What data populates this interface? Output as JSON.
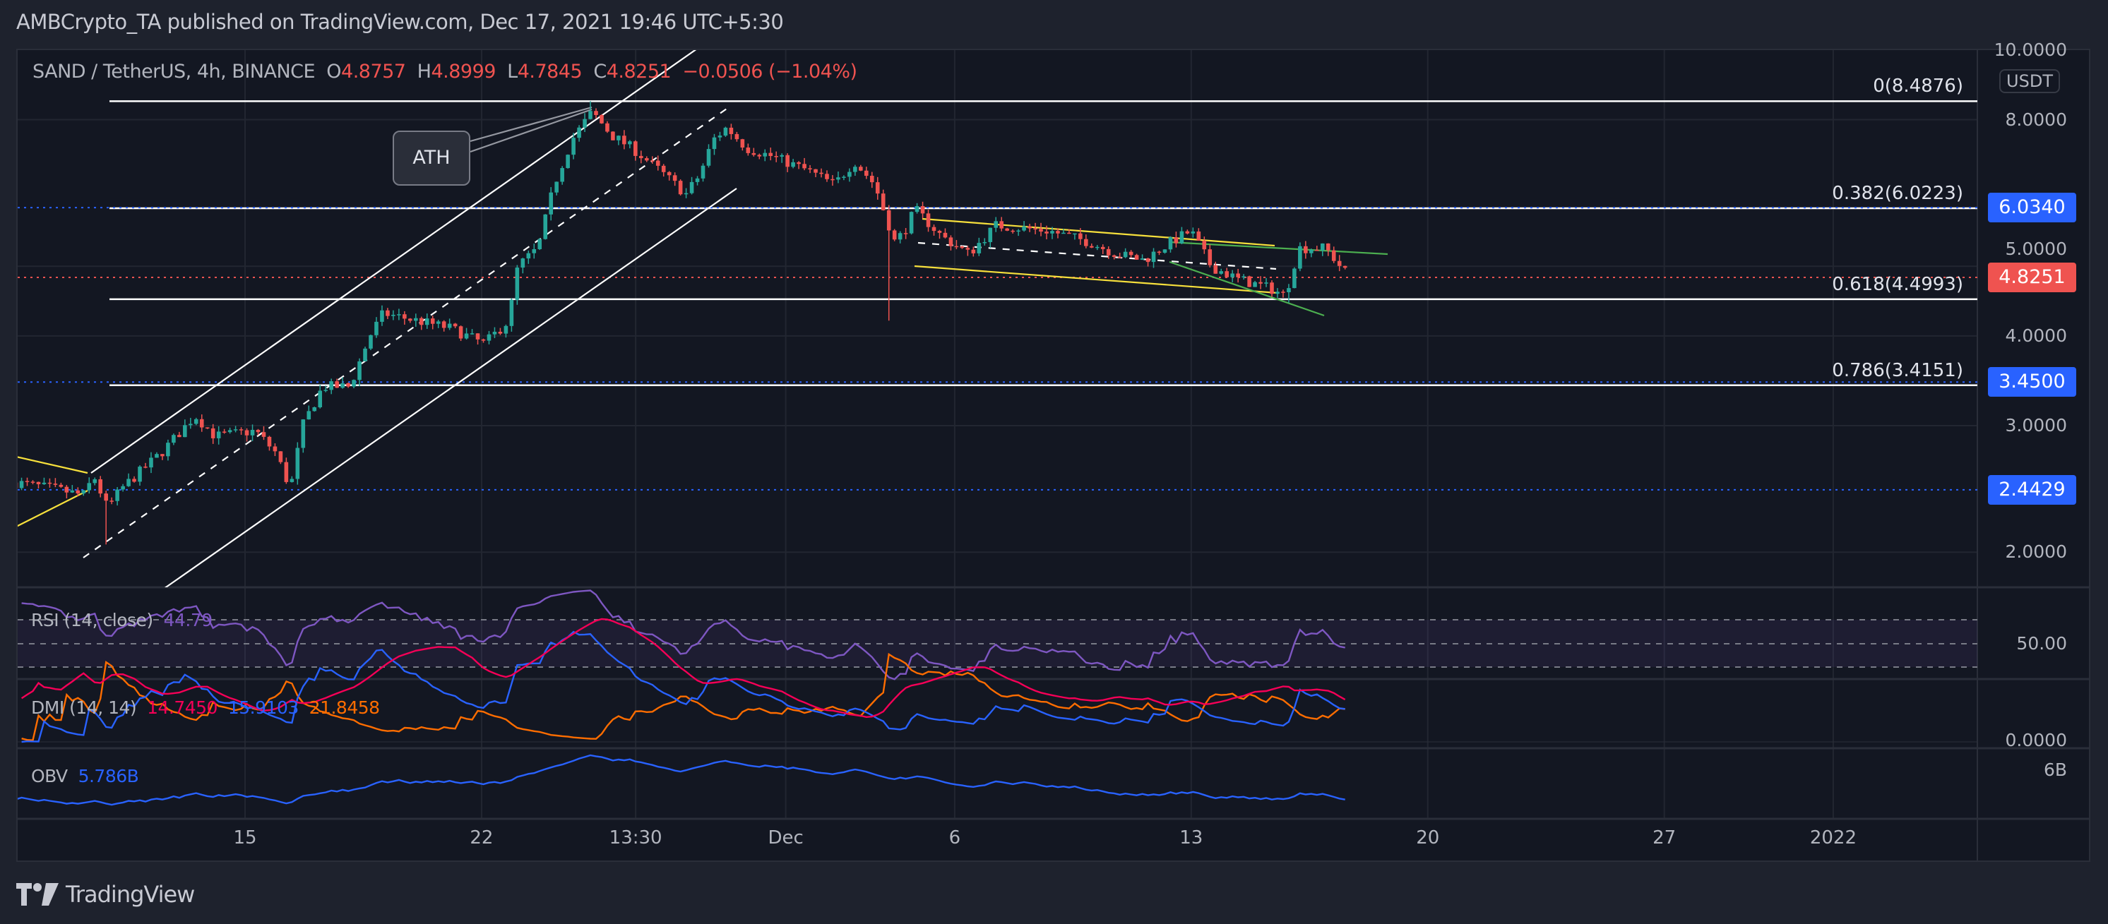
{
  "header": {
    "published": "AMBCrypto_TA published on TradingView.com, Dec 17, 2021 19:46 UTC+5:30",
    "symbol": "SAND / TetherUS, 4h, BINANCE",
    "o_label": "O",
    "o": "4.8757",
    "h_label": "H",
    "h": "4.8999",
    "l_label": "L",
    "l": "4.7845",
    "c_label": "C",
    "c": "4.8251",
    "change": "−0.0506 (−1.04%)"
  },
  "price_axis": {
    "currency": "USDT",
    "ticks": [
      "10.0000",
      "8.0000",
      "5.0000",
      "4.0000",
      "3.0000",
      "2.0000"
    ],
    "tags": [
      {
        "label": "6.0340",
        "value": 6.034,
        "color": "#2962ff"
      },
      {
        "label": "4.8251",
        "value": 4.8251,
        "color": "#ef5350"
      },
      {
        "label": "3.4500",
        "value": 3.45,
        "color": "#2962ff"
      },
      {
        "label": "2.4429",
        "value": 2.4429,
        "color": "#2962ff"
      }
    ]
  },
  "fib_levels": [
    {
      "label": "0(8.4876)",
      "value": 8.4876
    },
    {
      "label": "0.382(6.0223)",
      "value": 6.0223
    },
    {
      "label": "0.618(4.4993)",
      "value": 4.4993
    },
    {
      "label": "0.786(3.4151)",
      "value": 3.4151
    }
  ],
  "annotation": {
    "ath": "ATH"
  },
  "time_axis": [
    {
      "label": "15",
      "t": 0
    },
    {
      "label": "22",
      "t": 7
    },
    {
      "label": "13:30",
      "t": 11.56
    },
    {
      "label": "Dec",
      "t": 16
    },
    {
      "label": "6",
      "t": 21
    },
    {
      "label": "13",
      "t": 28
    },
    {
      "label": "20",
      "t": 35
    },
    {
      "label": "27",
      "t": 42
    },
    {
      "label": "2022",
      "t": 47
    }
  ],
  "indicators": {
    "rsi": {
      "label": "RSI (14, close)",
      "value": "44.79",
      "axis": "50.00",
      "color": "#7e57c2"
    },
    "dmi": {
      "label": "DMI (14, 14)",
      "adx": "14.7450",
      "plus": "15.9103",
      "minus": "21.8458",
      "axis": "0.0000",
      "colors": {
        "adx": "#f50057",
        "plus": "#2962ff",
        "minus": "#ff6d00"
      }
    },
    "obv": {
      "label": "OBV",
      "value": "5.786B",
      "axis": "6B",
      "color": "#2962ff"
    }
  },
  "footer": {
    "brand": "TradingView"
  },
  "chart_data": {
    "type": "candlestick",
    "title": "SAND / TetherUS, 4h, BINANCE",
    "x_unit": "days since Nov 15 2021",
    "y_scale": "log",
    "ylim": [
      1.6,
      10.5
    ],
    "colors": {
      "up": "#26a69a",
      "down": "#ef5350"
    },
    "price_path": [
      [
        -6.78,
        2.5
      ],
      [
        -5.67,
        2.45
      ],
      [
        -4.79,
        2.4
      ],
      [
        -4.47,
        2.55
      ],
      [
        -4.07,
        2.3
      ],
      [
        -3.67,
        2.45
      ],
      [
        -2.48,
        2.75
      ],
      [
        -1.48,
        3.1
      ],
      [
        -0.89,
        2.9
      ],
      [
        0.31,
        2.95
      ],
      [
        0.91,
        2.75
      ],
      [
        1.34,
        2.45
      ],
      [
        1.7,
        3.0
      ],
      [
        2.3,
        3.4
      ],
      [
        3.1,
        3.4
      ],
      [
        3.69,
        4.0
      ],
      [
        4.09,
        4.3
      ],
      [
        5.09,
        4.2
      ],
      [
        6.08,
        4.1
      ],
      [
        7.08,
        3.9
      ],
      [
        7.8,
        4.2
      ],
      [
        8.07,
        5.0
      ],
      [
        8.67,
        5.3
      ],
      [
        9.15,
        6.5
      ],
      [
        9.67,
        7.5
      ],
      [
        10.27,
        8.2
      ],
      [
        10.86,
        7.6
      ],
      [
        11.46,
        7.3
      ],
      [
        12.26,
        6.8
      ],
      [
        13.05,
        6.3
      ],
      [
        13.45,
        6.7
      ],
      [
        13.85,
        7.5
      ],
      [
        14.25,
        7.8
      ],
      [
        14.85,
        7.3
      ],
      [
        15.64,
        7.1
      ],
      [
        16.64,
        6.8
      ],
      [
        17.44,
        6.5
      ],
      [
        18.03,
        7.0
      ],
      [
        18.63,
        6.5
      ],
      [
        19.23,
        5.4
      ],
      [
        19.51,
        5.6
      ],
      [
        19.83,
        6.0
      ],
      [
        20.62,
        5.5
      ],
      [
        21.42,
        5.2
      ],
      [
        22.22,
        5.7
      ],
      [
        23.81,
        5.6
      ],
      [
        25.0,
        5.4
      ],
      [
        25.8,
        5.2
      ],
      [
        26.6,
        5.1
      ],
      [
        27.39,
        5.4
      ],
      [
        27.99,
        5.6
      ],
      [
        28.59,
        5.0
      ],
      [
        29.38,
        4.8
      ],
      [
        30.38,
        4.65
      ],
      [
        30.78,
        4.55
      ],
      [
        31.18,
        5.3
      ],
      [
        31.97,
        5.3
      ],
      [
        32.69,
        4.8251
      ]
    ],
    "wick_lows": [
      [
        -4.07,
        2.05
      ],
      [
        1.34,
        2.5
      ],
      [
        19.1,
        4.2
      ],
      [
        30.9,
        4.45
      ]
    ],
    "wick_highs": [
      [
        10.27,
        8.4876
      ]
    ]
  }
}
